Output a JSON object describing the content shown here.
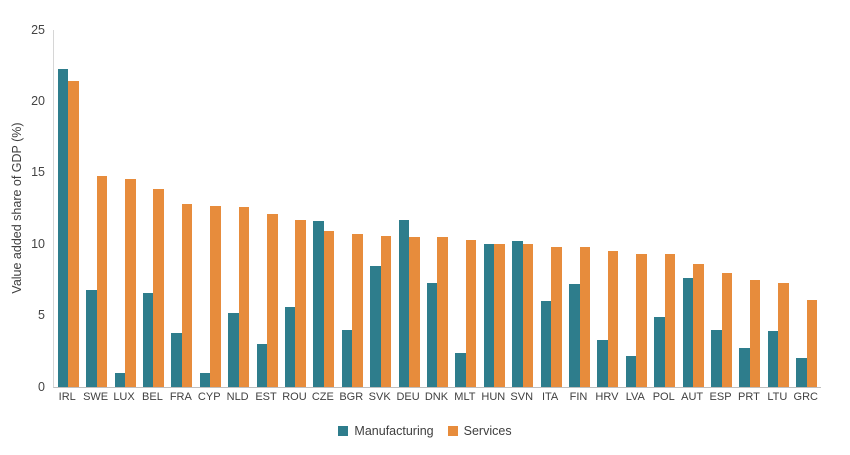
{
  "chart_data": {
    "type": "bar",
    "title": "",
    "xlabel": "",
    "ylabel": "Value added share of GDP (%)",
    "ylim": [
      0,
      25
    ],
    "yticks": [
      0,
      5,
      10,
      15,
      20,
      25
    ],
    "grid": false,
    "legend_position": "bottom-center",
    "background_color": "#ffffff",
    "axis_line_color": "#c9c9c9",
    "categories": [
      "IRL",
      "SWE",
      "LUX",
      "BEL",
      "FRA",
      "CYP",
      "NLD",
      "EST",
      "ROU",
      "CZE",
      "BGR",
      "SVK",
      "DEU",
      "DNK",
      "MLT",
      "HUN",
      "SVN",
      "ITA",
      "FIN",
      "HRV",
      "LVA",
      "POL",
      "AUT",
      "ESP",
      "PRT",
      "LTU",
      "GRC"
    ],
    "series": [
      {
        "name": "Manufacturing",
        "color": "#2e7d8c",
        "values": [
          22.3,
          6.8,
          1.0,
          6.6,
          3.8,
          1.0,
          5.2,
          3.0,
          5.6,
          11.6,
          4.0,
          8.5,
          11.7,
          7.3,
          2.4,
          10.0,
          10.2,
          6.0,
          7.2,
          3.3,
          2.2,
          4.9,
          7.6,
          4.0,
          2.7,
          3.9,
          2.0
        ]
      },
      {
        "name": "Services",
        "color": "#e78c3c",
        "values": [
          21.4,
          14.8,
          14.6,
          13.9,
          12.8,
          12.7,
          12.6,
          12.1,
          11.7,
          10.9,
          10.7,
          10.6,
          10.5,
          10.5,
          10.3,
          10.0,
          10.0,
          9.8,
          9.8,
          9.5,
          9.3,
          9.3,
          8.6,
          8.0,
          7.5,
          7.3,
          6.1
        ]
      }
    ]
  }
}
